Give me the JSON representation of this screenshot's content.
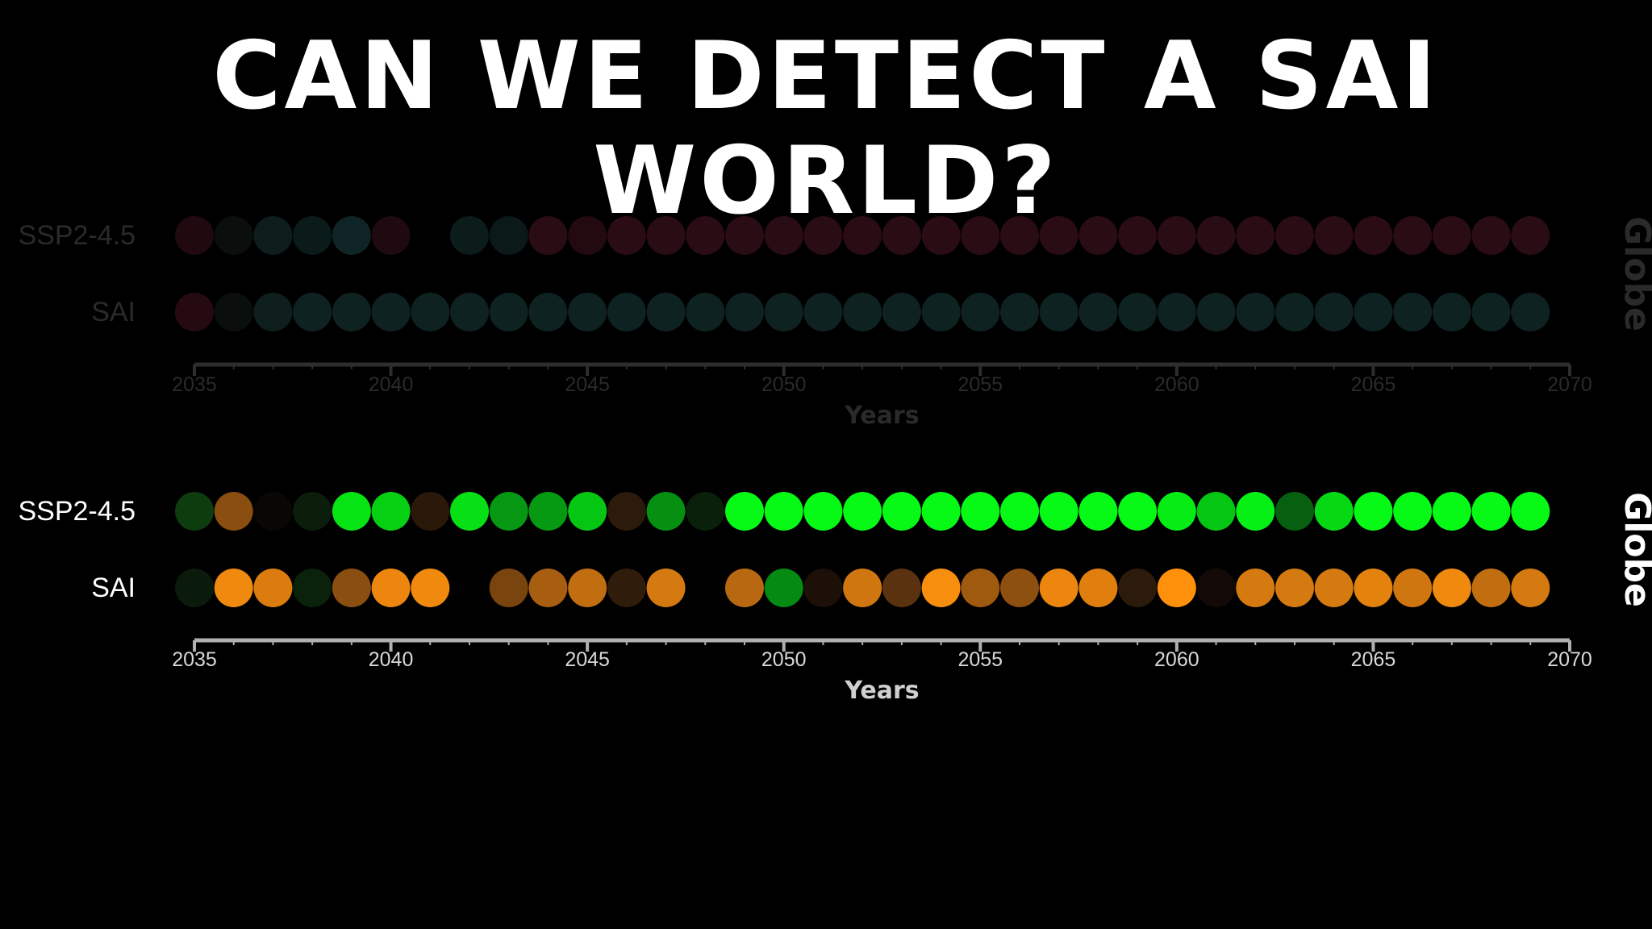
{
  "title": "CAN WE DETECT A SAI WORLD?",
  "chart_data": [
    {
      "type": "scatter",
      "style": "dimmed",
      "xlabel": "Years",
      "side_label": "Globe",
      "xlim": [
        2035,
        2070
      ],
      "xticks": [
        2035,
        2040,
        2045,
        2050,
        2055,
        2060,
        2065,
        2070
      ],
      "years": [
        2035,
        2036,
        2037,
        2038,
        2039,
        2040,
        2041,
        2042,
        2043,
        2044,
        2045,
        2046,
        2047,
        2048,
        2049,
        2050,
        2051,
        2052,
        2053,
        2054,
        2055,
        2056,
        2057,
        2058,
        2059,
        2060,
        2061,
        2062,
        2063,
        2064,
        2065,
        2066,
        2067,
        2068,
        2069
      ],
      "series": [
        {
          "name": "SSP2-4.5",
          "colors": [
            "#200a10",
            "#0a0e0c",
            "#0c1d1c",
            "#0b1b1a",
            "#0f2424",
            "#1e0a10",
            "#000000",
            "#0b1c1b",
            "#0b1a18",
            "#2a0c14",
            "#220a10",
            "#2a0c14",
            "#2a0c14",
            "#2a0c14",
            "#2a0c14",
            "#2a0c14",
            "#2a0c14",
            "#2a0c14",
            "#2a0c14",
            "#2a0c14",
            "#2a0c14",
            "#2a0c14",
            "#2a0c14",
            "#2a0c14",
            "#2a0c14",
            "#2a0c14",
            "#2a0c14",
            "#2a0c14",
            "#2a0c14",
            "#2a0c14",
            "#2a0c14",
            "#2a0c14",
            "#2a0c14",
            "#2a0c14",
            "#2a0c14"
          ]
        },
        {
          "name": "SAI",
          "colors": [
            "#260a12",
            "#0a0e0c",
            "#0e1f1e",
            "#0e2221",
            "#0e2221",
            "#0e2221",
            "#0e2221",
            "#0e2221",
            "#0e2221",
            "#0e2221",
            "#0e2221",
            "#0e2221",
            "#0e2221",
            "#0e2221",
            "#0e2221",
            "#0e2221",
            "#0e2221",
            "#0e2221",
            "#0e2221",
            "#0e2221",
            "#0e2221",
            "#0e2221",
            "#0e2221",
            "#0e2221",
            "#0e2221",
            "#0e2221",
            "#0e2221",
            "#0e2221",
            "#0e2221",
            "#0e2221",
            "#0e2221",
            "#0e2221",
            "#0e2221",
            "#0e2221",
            "#0e2221"
          ]
        }
      ]
    },
    {
      "type": "scatter",
      "style": "bright",
      "xlabel": "Years",
      "side_label": "Globe",
      "xlim": [
        2035,
        2070
      ],
      "xticks": [
        2035,
        2040,
        2045,
        2050,
        2055,
        2060,
        2065,
        2070
      ],
      "years": [
        2035,
        2036,
        2037,
        2038,
        2039,
        2040,
        2041,
        2042,
        2043,
        2044,
        2045,
        2046,
        2047,
        2048,
        2049,
        2050,
        2051,
        2052,
        2053,
        2054,
        2055,
        2056,
        2057,
        2058,
        2059,
        2060,
        2061,
        2062,
        2063,
        2064,
        2065,
        2066,
        2067,
        2068,
        2069
      ],
      "series": [
        {
          "name": "SSP2-4.5",
          "colors": [
            "#0d3c0f",
            "#8a4e10",
            "#0a0604",
            "#0a1e0b",
            "#06e414",
            "#05d012",
            "#2a1808",
            "#06e014",
            "#069812",
            "#059a12",
            "#06c614",
            "#2c1a0a",
            "#059012",
            "#0a200b",
            "#06fa16",
            "#06fa16",
            "#06fa16",
            "#06fa16",
            "#06fa16",
            "#06fa16",
            "#06fa16",
            "#06fa16",
            "#06fa16",
            "#06fa16",
            "#06fa16",
            "#06ec15",
            "#06c614",
            "#06f016",
            "#066010",
            "#06d814",
            "#06fa16",
            "#06fa16",
            "#06fa16",
            "#06fa16",
            "#06fa16"
          ]
        },
        {
          "name": "SAI",
          "colors": [
            "#0a1a0b",
            "#f08a0e",
            "#dc7c0e",
            "#0a220b",
            "#8a4e10",
            "#ec860e",
            "#f08a0e",
            "#000000",
            "#7a440e",
            "#a85e10",
            "#c06e10",
            "#301c0a",
            "#d47a10",
            "#000000",
            "#b86810",
            "#058a12",
            "#1c1008",
            "#d07610",
            "#5a3210",
            "#f88e0e",
            "#a05a10",
            "#8e5010",
            "#ec860e",
            "#e07e0e",
            "#2c1a0a",
            "#ff900c",
            "#120a06",
            "#d47a10",
            "#d47a10",
            "#d47a10",
            "#e4820e",
            "#d07610",
            "#f08a0e",
            "#c06e10",
            "#d47a10"
          ]
        }
      ]
    }
  ]
}
